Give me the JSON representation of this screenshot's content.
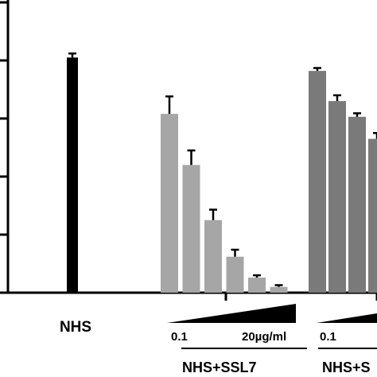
{
  "chart_data": {
    "type": "bar",
    "title": "",
    "xlabel": "",
    "ylabel": "",
    "ylim": [
      0,
      5
    ],
    "yticks": [
      0,
      1,
      2,
      3,
      4,
      5
    ],
    "bar_colors": {
      "NHS": "#000000",
      "NHS+SSL7": "#a6a6a6",
      "NHS+S": "#7a7a7a"
    },
    "groups": [
      {
        "label": "NHS",
        "values": [
          4.05
        ],
        "errors": [
          0.07
        ]
      },
      {
        "label": "NHS+SSL7",
        "values": [
          3.08,
          2.2,
          1.25,
          0.62,
          0.26,
          0.1
        ],
        "errors": [
          0.3,
          0.25,
          0.18,
          0.12,
          0.04,
          0.03
        ]
      },
      {
        "label": "NHS+S",
        "values": [
          3.82,
          3.3,
          3.03,
          2.65
        ],
        "errors": [
          0.05,
          0.1,
          0.06,
          0.1
        ]
      }
    ],
    "concentration_low": "0.1",
    "concentration_high": "20µg/ml",
    "concentration_low_2": "0.1"
  }
}
